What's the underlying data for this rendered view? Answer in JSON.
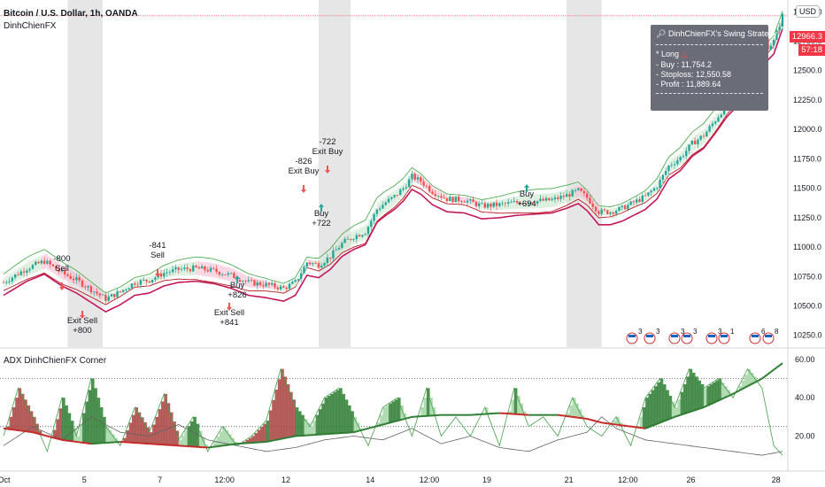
{
  "header": {
    "symbol_title": "Bitcoin / U.S. Dollar, 1h, OANDA",
    "indicator_name": "DinhChienFX",
    "currency_button": "USD"
  },
  "price_tags": [
    {
      "text": "12966.3",
      "color": "#f23645"
    },
    {
      "text": "57:18",
      "color": "#f23645"
    }
  ],
  "strategy_panel": {
    "title": "DinhChienFX's Swing Strategy",
    "title_icon": "magnifier-icon",
    "position_label": "* Long",
    "position_icon": "warning-triangle-icon",
    "buy": "- Buy    : 11,754.2",
    "stoploss": "- Stoploss: 12,550.58",
    "profit": "- Profit   : 11,889.64"
  },
  "trade_labels": [
    {
      "id": "sell1",
      "lines": [
        "-800",
        "Sell"
      ],
      "kind": "sell"
    },
    {
      "id": "exitsell1",
      "lines": [
        "Exit Sell",
        "+800"
      ],
      "kind": "exit"
    },
    {
      "id": "sell2",
      "lines": [
        "-841",
        "Sell"
      ],
      "kind": "sell"
    },
    {
      "id": "buy1",
      "lines": [
        "Buy",
        "+826"
      ],
      "kind": "buy"
    },
    {
      "id": "exitsell2",
      "lines": [
        "Exit Sell",
        "+841"
      ],
      "kind": "exit"
    },
    {
      "id": "exitbuy1",
      "lines": [
        "-826",
        "Exit Buy"
      ],
      "kind": "exit"
    },
    {
      "id": "exitbuy2",
      "lines": [
        "-722",
        "Exit Buy"
      ],
      "kind": "exit"
    },
    {
      "id": "buy2",
      "lines": [
        "Buy",
        "+722"
      ],
      "kind": "buy"
    },
    {
      "id": "buy3",
      "lines": [
        "Buy",
        "+694"
      ],
      "kind": "buy"
    }
  ],
  "event_markers": [
    "3",
    "3",
    "3",
    "3",
    "3",
    "1",
    "6",
    "8"
  ],
  "adx_panel": {
    "title": "ADX DinhChienFX Corner"
  },
  "colors": {
    "up": "#26a69a",
    "down": "#ef5350",
    "green_band": "#4caf50",
    "red_band": "#b71c1c",
    "session": "#e6e6e6"
  },
  "chart_data": [
    {
      "type": "candlestick",
      "title": "Bitcoin / U.S. Dollar, 1h, OANDA",
      "x_ticks": [
        "Oct",
        "5",
        "7",
        "12:00",
        "12",
        "14",
        "12:00",
        "19",
        "21",
        "12:00",
        "26",
        "28"
      ],
      "y_ticks": [
        "10250.0",
        "10500.0",
        "10750.0",
        "11000.0",
        "11250.0",
        "11500.0",
        "11750.0",
        "12000.0",
        "12250.0",
        "12500.0",
        "12750.0",
        "13000.0"
      ],
      "ylim": [
        10150,
        13100
      ],
      "last_price": 12966.3,
      "close_path": [
        [
          0,
          10700
        ],
        [
          8,
          10820
        ],
        [
          14,
          10880
        ],
        [
          20,
          10780
        ],
        [
          25,
          10720
        ],
        [
          30,
          10640
        ],
        [
          35,
          10560
        ],
        [
          40,
          10620
        ],
        [
          45,
          10700
        ],
        [
          50,
          10720
        ],
        [
          55,
          10780
        ],
        [
          60,
          10810
        ],
        [
          66,
          10820
        ],
        [
          72,
          10800
        ],
        [
          78,
          10760
        ],
        [
          84,
          10700
        ],
        [
          90,
          10680
        ],
        [
          96,
          10650
        ],
        [
          100,
          10700
        ],
        [
          104,
          10870
        ],
        [
          108,
          10850
        ],
        [
          112,
          10920
        ],
        [
          116,
          11030
        ],
        [
          120,
          11090
        ],
        [
          124,
          11130
        ],
        [
          128,
          11320
        ],
        [
          131,
          11380
        ],
        [
          134,
          11430
        ],
        [
          137,
          11500
        ],
        [
          140,
          11600
        ],
        [
          143,
          11560
        ],
        [
          147,
          11470
        ],
        [
          152,
          11410
        ],
        [
          158,
          11400
        ],
        [
          164,
          11350
        ],
        [
          170,
          11360
        ],
        [
          176,
          11380
        ],
        [
          182,
          11390
        ],
        [
          188,
          11400
        ],
        [
          193,
          11440
        ],
        [
          197,
          11480
        ],
        [
          200,
          11420
        ],
        [
          204,
          11300
        ],
        [
          208,
          11300
        ],
        [
          212,
          11330
        ],
        [
          216,
          11380
        ],
        [
          220,
          11430
        ],
        [
          224,
          11520
        ],
        [
          228,
          11690
        ],
        [
          232,
          11760
        ],
        [
          236,
          11880
        ],
        [
          240,
          11950
        ],
        [
          244,
          12080
        ],
        [
          248,
          12220
        ],
        [
          252,
          12320
        ],
        [
          256,
          12480
        ],
        [
          258,
          12640
        ],
        [
          260,
          12830
        ],
        [
          262,
          12700
        ],
        [
          264,
          12750
        ],
        [
          267,
          12966
        ]
      ],
      "bars": 268,
      "sessions": [
        [
          22,
          34
        ],
        [
          108,
          119
        ],
        [
          193,
          205
        ]
      ]
    },
    {
      "type": "line",
      "title": "ADX DinhChienFX Corner",
      "y_ticks": [
        "20.00",
        "40.00",
        "60.00"
      ],
      "ylim": [
        5,
        65
      ],
      "levels": [
        50,
        25
      ],
      "adx_path": [
        [
          0,
          24
        ],
        [
          10,
          22
        ],
        [
          20,
          18
        ],
        [
          30,
          16
        ],
        [
          40,
          17
        ],
        [
          50,
          16
        ],
        [
          60,
          15
        ],
        [
          70,
          14
        ],
        [
          80,
          16
        ],
        [
          90,
          17
        ],
        [
          100,
          20
        ],
        [
          110,
          21
        ],
        [
          120,
          22
        ],
        [
          130,
          26
        ],
        [
          140,
          30
        ],
        [
          150,
          31
        ],
        [
          160,
          31
        ],
        [
          170,
          32
        ],
        [
          180,
          31
        ],
        [
          190,
          31
        ],
        [
          200,
          29
        ],
        [
          205,
          27
        ],
        [
          210,
          26
        ],
        [
          220,
          24
        ],
        [
          230,
          30
        ],
        [
          240,
          35
        ],
        [
          250,
          42
        ],
        [
          260,
          50
        ],
        [
          267,
          58
        ]
      ],
      "di_plus_path": [
        [
          0,
          20
        ],
        [
          5,
          45
        ],
        [
          10,
          30
        ],
        [
          15,
          12
        ],
        [
          20,
          40
        ],
        [
          25,
          20
        ],
        [
          30,
          50
        ],
        [
          35,
          25
        ],
        [
          40,
          15
        ],
        [
          45,
          35
        ],
        [
          50,
          22
        ],
        [
          55,
          42
        ],
        [
          60,
          18
        ],
        [
          65,
          30
        ],
        [
          70,
          12
        ],
        [
          75,
          25
        ],
        [
          80,
          15
        ],
        [
          85,
          20
        ],
        [
          90,
          28
        ],
        [
          95,
          55
        ],
        [
          100,
          35
        ],
        [
          105,
          25
        ],
        [
          110,
          40
        ],
        [
          115,
          45
        ],
        [
          120,
          30
        ],
        [
          125,
          15
        ],
        [
          130,
          35
        ],
        [
          135,
          40
        ],
        [
          140,
          20
        ],
        [
          145,
          45
        ],
        [
          150,
          20
        ],
        [
          155,
          30
        ],
        [
          160,
          20
        ],
        [
          165,
          35
        ],
        [
          170,
          15
        ],
        [
          175,
          45
        ],
        [
          180,
          25
        ],
        [
          185,
          30
        ],
        [
          190,
          20
        ],
        [
          195,
          40
        ],
        [
          200,
          25
        ],
        [
          205,
          20
        ],
        [
          210,
          30
        ],
        [
          215,
          15
        ],
        [
          220,
          40
        ],
        [
          225,
          50
        ],
        [
          230,
          35
        ],
        [
          235,
          55
        ],
        [
          240,
          45
        ],
        [
          245,
          50
        ],
        [
          250,
          40
        ],
        [
          255,
          55
        ],
        [
          260,
          45
        ],
        [
          264,
          15
        ],
        [
          267,
          10
        ]
      ],
      "di_minus_path": [
        [
          0,
          15
        ],
        [
          10,
          25
        ],
        [
          20,
          18
        ],
        [
          30,
          30
        ],
        [
          40,
          22
        ],
        [
          50,
          20
        ],
        [
          60,
          26
        ],
        [
          70,
          18
        ],
        [
          80,
          15
        ],
        [
          90,
          12
        ],
        [
          100,
          14
        ],
        [
          110,
          18
        ],
        [
          120,
          20
        ],
        [
          130,
          18
        ],
        [
          140,
          24
        ],
        [
          150,
          16
        ],
        [
          160,
          20
        ],
        [
          170,
          14
        ],
        [
          180,
          12
        ],
        [
          190,
          18
        ],
        [
          200,
          22
        ],
        [
          205,
          30
        ],
        [
          210,
          24
        ],
        [
          220,
          18
        ],
        [
          230,
          16
        ],
        [
          240,
          14
        ],
        [
          250,
          12
        ],
        [
          260,
          10
        ],
        [
          267,
          12
        ]
      ]
    }
  ]
}
